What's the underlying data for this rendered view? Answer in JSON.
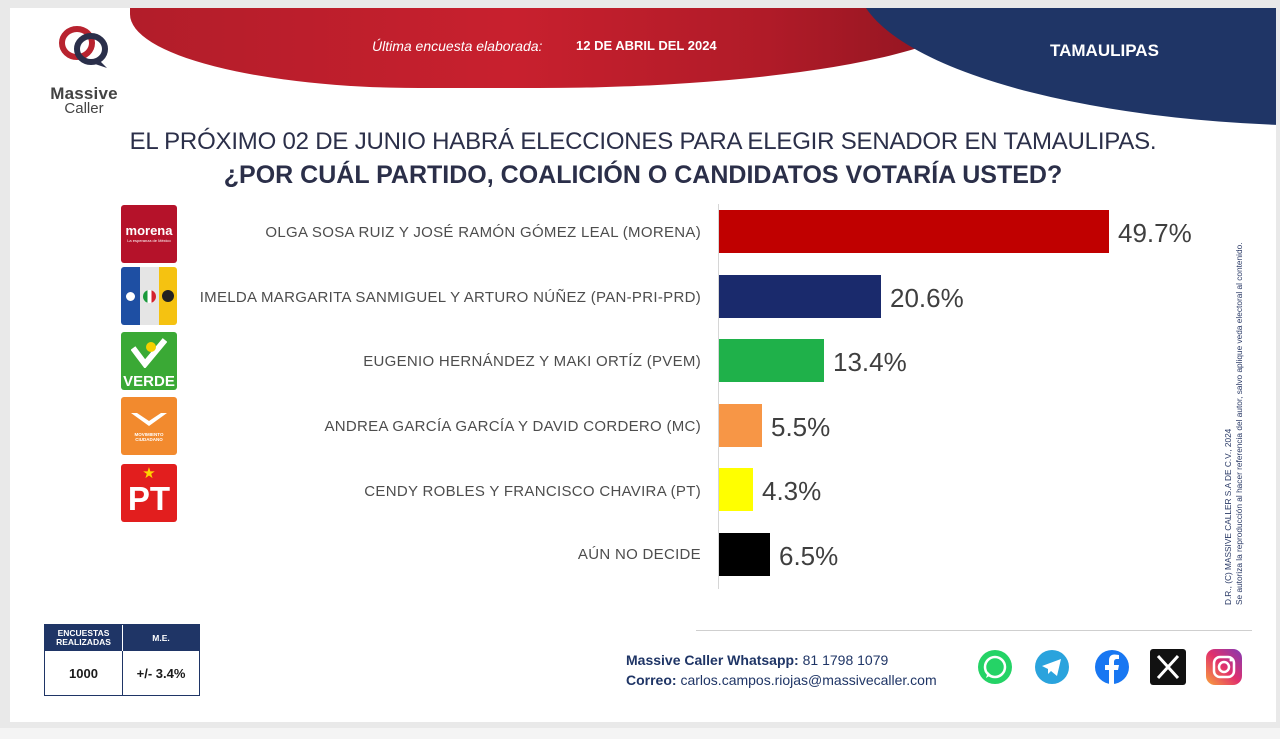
{
  "brand": {
    "name_line1": "Massive",
    "name_line2": "Caller"
  },
  "header": {
    "survey_date_label": "Última encuesta elaborada:",
    "survey_date_value": "12 DE ABRIL DEL 2024",
    "region": "TAMAULIPAS"
  },
  "question": {
    "line1": "EL PRÓXIMO 02 DE JUNIO HABRÁ ELECCIONES PARA ELEGIR SENADOR EN TAMAULIPAS.",
    "line2": "¿POR CUÁL PARTIDO, COALICIÓN O CANDIDATOS VOTARÍA USTED?"
  },
  "party_logos": {
    "morena": {
      "text": "morena",
      "subtext": "La esperanza de México"
    },
    "verde": {
      "text": "VERDE"
    },
    "mc": {
      "text": "MOVIMIENTO CIUDADANO"
    },
    "pt": {
      "text": "PT"
    }
  },
  "chart_data": {
    "type": "bar",
    "orientation": "horizontal",
    "categories": [
      "OLGA SOSA RUIZ Y JOSÉ RAMÓN GÓMEZ LEAL (MORENA)",
      "IMELDA MARGARITA SANMIGUEL Y ARTURO NÚÑEZ (PAN-PRI-PRD)",
      "EUGENIO HERNÁNDEZ  Y MAKI ORTÍZ (PVEM)",
      "ANDREA GARCÍA GARCÍA  Y DAVID CORDERO (MC)",
      "CENDY ROBLES Y FRANCISCO CHAVIRA (PT)",
      "AÚN NO DECIDE"
    ],
    "values": [
      49.7,
      20.6,
      13.4,
      5.5,
      4.3,
      6.5
    ],
    "value_labels": [
      "49.7%",
      "20.6%",
      "13.4%",
      "5.5%",
      "4.3%",
      "6.5%"
    ],
    "colors": [
      "#c00000",
      "#1a2a6c",
      "#1fb14a",
      "#f79646",
      "#ffff00",
      "#000000"
    ],
    "party_logos": [
      "morena",
      "pan-pri-prd",
      "verde",
      "mc",
      "pt",
      ""
    ],
    "xlim": [
      0,
      50
    ],
    "grid": false,
    "legend": "none"
  },
  "side_note": {
    "line1": "D.R., (C) MASSIVE CALLER S.A DE C.V., 2024",
    "line2": "Se autoriza la reproducción al hacer referencia del autor, salvo aplique veda electoral al contenido."
  },
  "stats": {
    "col1_header": "ENCUESTAS REALIZADAS",
    "col2_header": "M.E.",
    "col1_value": "1000",
    "col2_value": "+/- 3.4%"
  },
  "contact": {
    "whatsapp_label": "Massive Caller Whatsapp:",
    "whatsapp_value": "81 1798 1079",
    "email_label": "Correo:",
    "email_value": "carlos.campos.riojas@massivecaller.com"
  },
  "social_icons": [
    "whatsapp-icon",
    "telegram-icon",
    "facebook-icon",
    "x-icon",
    "instagram-icon"
  ],
  "colors": {
    "navy": "#1f3566",
    "red": "#c00000",
    "text": "#2b2f49"
  }
}
